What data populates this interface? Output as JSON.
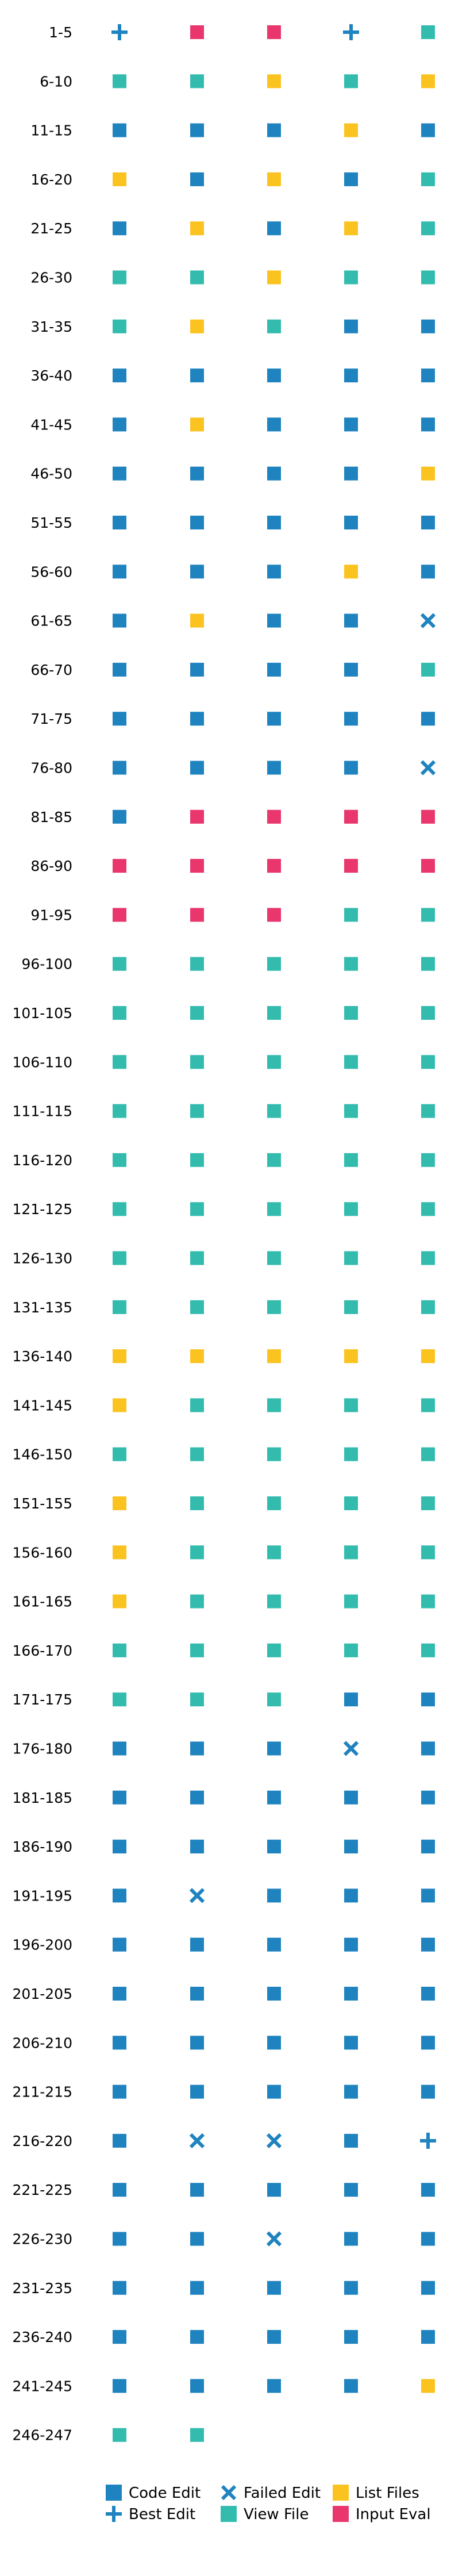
{
  "chart_data": {
    "type": "table",
    "columns_per_row": 5,
    "colors": {
      "code_edit": "#1f83bf",
      "best_edit": "#1f83bf",
      "failed_edit": "#1f83bf",
      "view_file": "#33bcae",
      "list_files": "#fbc320",
      "input_eval": "#e9366d"
    },
    "legend": [
      {
        "key": "C",
        "label": "Code Edit",
        "marker": "square",
        "color": "#1f83bf"
      },
      {
        "key": "B",
        "label": "Best Edit",
        "marker": "plus",
        "color": "#1f83bf"
      },
      {
        "key": "F",
        "label": "Failed Edit",
        "marker": "x",
        "color": "#1f83bf"
      },
      {
        "key": "V",
        "label": "View File",
        "marker": "square",
        "color": "#33bcae"
      },
      {
        "key": "L",
        "label": "List Files",
        "marker": "square",
        "color": "#fbc320"
      },
      {
        "key": "I",
        "label": "Input Eval",
        "marker": "square",
        "color": "#e9366d"
      }
    ],
    "rows": [
      {
        "label": "1-5",
        "steps": [
          "B",
          "I",
          "I",
          "B",
          "V"
        ]
      },
      {
        "label": "6-10",
        "steps": [
          "V",
          "V",
          "L",
          "V",
          "L"
        ]
      },
      {
        "label": "11-15",
        "steps": [
          "C",
          "C",
          "C",
          "L",
          "C"
        ]
      },
      {
        "label": "16-20",
        "steps": [
          "L",
          "C",
          "L",
          "C",
          "V"
        ]
      },
      {
        "label": "21-25",
        "steps": [
          "C",
          "L",
          "C",
          "L",
          "V"
        ]
      },
      {
        "label": "26-30",
        "steps": [
          "V",
          "V",
          "L",
          "V",
          "V"
        ]
      },
      {
        "label": "31-35",
        "steps": [
          "V",
          "L",
          "V",
          "C",
          "C"
        ]
      },
      {
        "label": "36-40",
        "steps": [
          "C",
          "C",
          "C",
          "C",
          "C"
        ]
      },
      {
        "label": "41-45",
        "steps": [
          "C",
          "L",
          "C",
          "C",
          "C"
        ]
      },
      {
        "label": "46-50",
        "steps": [
          "C",
          "C",
          "C",
          "C",
          "L"
        ]
      },
      {
        "label": "51-55",
        "steps": [
          "C",
          "C",
          "C",
          "C",
          "C"
        ]
      },
      {
        "label": "56-60",
        "steps": [
          "C",
          "C",
          "C",
          "L",
          "C"
        ]
      },
      {
        "label": "61-65",
        "steps": [
          "C",
          "L",
          "C",
          "C",
          "F"
        ]
      },
      {
        "label": "66-70",
        "steps": [
          "C",
          "C",
          "C",
          "C",
          "V"
        ]
      },
      {
        "label": "71-75",
        "steps": [
          "C",
          "C",
          "C",
          "C",
          "C"
        ]
      },
      {
        "label": "76-80",
        "steps": [
          "C",
          "C",
          "C",
          "C",
          "F"
        ]
      },
      {
        "label": "81-85",
        "steps": [
          "C",
          "I",
          "I",
          "I",
          "I"
        ]
      },
      {
        "label": "86-90",
        "steps": [
          "I",
          "I",
          "I",
          "I",
          "I"
        ]
      },
      {
        "label": "91-95",
        "steps": [
          "I",
          "I",
          "I",
          "V",
          "V"
        ]
      },
      {
        "label": "96-100",
        "steps": [
          "V",
          "V",
          "V",
          "V",
          "V"
        ]
      },
      {
        "label": "101-105",
        "steps": [
          "V",
          "V",
          "V",
          "V",
          "V"
        ]
      },
      {
        "label": "106-110",
        "steps": [
          "V",
          "V",
          "V",
          "V",
          "V"
        ]
      },
      {
        "label": "111-115",
        "steps": [
          "V",
          "V",
          "V",
          "V",
          "V"
        ]
      },
      {
        "label": "116-120",
        "steps": [
          "V",
          "V",
          "V",
          "V",
          "V"
        ]
      },
      {
        "label": "121-125",
        "steps": [
          "V",
          "V",
          "V",
          "V",
          "V"
        ]
      },
      {
        "label": "126-130",
        "steps": [
          "V",
          "V",
          "V",
          "V",
          "V"
        ]
      },
      {
        "label": "131-135",
        "steps": [
          "V",
          "V",
          "V",
          "V",
          "V"
        ]
      },
      {
        "label": "136-140",
        "steps": [
          "L",
          "L",
          "L",
          "L",
          "L"
        ]
      },
      {
        "label": "141-145",
        "steps": [
          "L",
          "V",
          "V",
          "V",
          "V"
        ]
      },
      {
        "label": "146-150",
        "steps": [
          "V",
          "V",
          "V",
          "V",
          "V"
        ]
      },
      {
        "label": "151-155",
        "steps": [
          "L",
          "V",
          "V",
          "V",
          "V"
        ]
      },
      {
        "label": "156-160",
        "steps": [
          "L",
          "V",
          "V",
          "V",
          "V"
        ]
      },
      {
        "label": "161-165",
        "steps": [
          "L",
          "V",
          "V",
          "V",
          "V"
        ]
      },
      {
        "label": "166-170",
        "steps": [
          "V",
          "V",
          "V",
          "V",
          "V"
        ]
      },
      {
        "label": "171-175",
        "steps": [
          "V",
          "V",
          "V",
          "C",
          "C"
        ]
      },
      {
        "label": "176-180",
        "steps": [
          "C",
          "C",
          "C",
          "F",
          "C"
        ]
      },
      {
        "label": "181-185",
        "steps": [
          "C",
          "C",
          "C",
          "C",
          "C"
        ]
      },
      {
        "label": "186-190",
        "steps": [
          "C",
          "C",
          "C",
          "C",
          "C"
        ]
      },
      {
        "label": "191-195",
        "steps": [
          "C",
          "F",
          "C",
          "C",
          "C"
        ]
      },
      {
        "label": "196-200",
        "steps": [
          "C",
          "C",
          "C",
          "C",
          "C"
        ]
      },
      {
        "label": "201-205",
        "steps": [
          "C",
          "C",
          "C",
          "C",
          "C"
        ]
      },
      {
        "label": "206-210",
        "steps": [
          "C",
          "C",
          "C",
          "C",
          "C"
        ]
      },
      {
        "label": "211-215",
        "steps": [
          "C",
          "C",
          "C",
          "C",
          "C"
        ]
      },
      {
        "label": "216-220",
        "steps": [
          "C",
          "F",
          "F",
          "C",
          "B"
        ]
      },
      {
        "label": "221-225",
        "steps": [
          "C",
          "C",
          "C",
          "C",
          "C"
        ]
      },
      {
        "label": "226-230",
        "steps": [
          "C",
          "C",
          "F",
          "C",
          "C"
        ]
      },
      {
        "label": "231-235",
        "steps": [
          "C",
          "C",
          "C",
          "C",
          "C"
        ]
      },
      {
        "label": "236-240",
        "steps": [
          "C",
          "C",
          "C",
          "C",
          "C"
        ]
      },
      {
        "label": "241-245",
        "steps": [
          "C",
          "C",
          "C",
          "C",
          "L"
        ]
      },
      {
        "label": "246-247",
        "steps": [
          "V",
          "V"
        ]
      }
    ]
  }
}
